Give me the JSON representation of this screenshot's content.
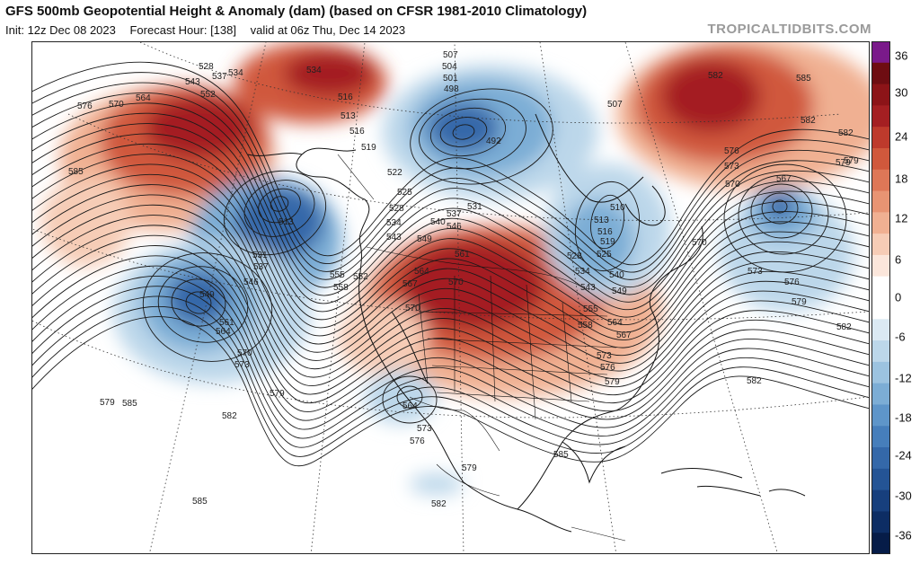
{
  "header": {
    "title": "GFS 500mb Geopotential Height & Anomaly (dam) (based on CFSR 1981-2010 Climatology)",
    "init": "Init: 12z Dec 08 2023",
    "forecast_hour": "Forecast Hour: [138]",
    "valid": "valid at 06z Thu, Dec 14 2023",
    "brand": "TROPICALTIDBITS.COM"
  },
  "colorbar": {
    "labels": [
      "36",
      "30",
      "24",
      "18",
      "12",
      "6",
      "0",
      "-6",
      "-12",
      "-18",
      "-24",
      "-30",
      "-36"
    ],
    "colors_top_to_bottom": [
      "#7a1a8a",
      "#6e0d12",
      "#8c1418",
      "#a41f22",
      "#be3a2c",
      "#d0583c",
      "#de7757",
      "#e89473",
      "#f0b092",
      "#f6ccb6",
      "#fbe6db",
      "#ffffff",
      "#ffffff",
      "#dbe9f3",
      "#bcd7ea",
      "#9cc3e0",
      "#7cadd5",
      "#5e95c9",
      "#467ebb",
      "#3468a9",
      "#245495",
      "#173f7d",
      "#0d2d64",
      "#061c48"
    ]
  },
  "map": {
    "anomaly_colors": {
      "pos_strong": "#a41f22",
      "pos_mid": "#d0583c",
      "pos_weak": "#f0b092",
      "neg_weak": "#bcd7ea",
      "neg_mid": "#7cadd5",
      "neg_strong": "#3468a9"
    },
    "height_labels": [
      {
        "text": "528"
      },
      {
        "text": "537"
      },
      {
        "text": "534"
      },
      {
        "text": "543"
      },
      {
        "text": "552"
      },
      {
        "text": "534"
      },
      {
        "text": "576"
      },
      {
        "text": "570"
      },
      {
        "text": "564"
      },
      {
        "text": "585"
      },
      {
        "text": "507"
      },
      {
        "text": "504"
      },
      {
        "text": "501"
      },
      {
        "text": "498"
      },
      {
        "text": "492"
      },
      {
        "text": "507"
      },
      {
        "text": "516"
      },
      {
        "text": "513"
      },
      {
        "text": "516"
      },
      {
        "text": "519"
      },
      {
        "text": "522"
      },
      {
        "text": "525"
      },
      {
        "text": "528"
      },
      {
        "text": "513"
      },
      {
        "text": "531"
      },
      {
        "text": "537"
      },
      {
        "text": "546"
      },
      {
        "text": "549"
      },
      {
        "text": "561"
      },
      {
        "text": "564"
      },
      {
        "text": "570"
      },
      {
        "text": "573"
      },
      {
        "text": "534"
      },
      {
        "text": "543"
      },
      {
        "text": "549"
      },
      {
        "text": "540"
      },
      {
        "text": "537"
      },
      {
        "text": "546"
      },
      {
        "text": "531"
      },
      {
        "text": "555"
      },
      {
        "text": "552"
      },
      {
        "text": "558"
      },
      {
        "text": "564"
      },
      {
        "text": "567"
      },
      {
        "text": "570"
      },
      {
        "text": "561"
      },
      {
        "text": "570"
      },
      {
        "text": "510"
      },
      {
        "text": "513"
      },
      {
        "text": "516"
      },
      {
        "text": "519"
      },
      {
        "text": "525"
      },
      {
        "text": "528"
      },
      {
        "text": "534"
      },
      {
        "text": "540"
      },
      {
        "text": "543"
      },
      {
        "text": "549"
      },
      {
        "text": "555"
      },
      {
        "text": "558"
      },
      {
        "text": "564"
      },
      {
        "text": "567"
      },
      {
        "text": "573"
      },
      {
        "text": "576"
      },
      {
        "text": "579"
      },
      {
        "text": "579"
      },
      {
        "text": "582"
      },
      {
        "text": "579"
      },
      {
        "text": "582"
      },
      {
        "text": "585"
      },
      {
        "text": "582"
      },
      {
        "text": "585"
      },
      {
        "text": "582"
      },
      {
        "text": "579"
      },
      {
        "text": "585"
      },
      {
        "text": "564"
      },
      {
        "text": "573"
      },
      {
        "text": "576"
      },
      {
        "text": "579"
      },
      {
        "text": "582"
      },
      {
        "text": "585"
      },
      {
        "text": "579"
      },
      {
        "text": "582"
      },
      {
        "text": "576"
      },
      {
        "text": "573"
      },
      {
        "text": "570"
      },
      {
        "text": "567"
      },
      {
        "text": "570"
      },
      {
        "text": "573"
      },
      {
        "text": "576"
      },
      {
        "text": "579"
      },
      {
        "text": "582"
      },
      {
        "text": "585"
      }
    ]
  }
}
